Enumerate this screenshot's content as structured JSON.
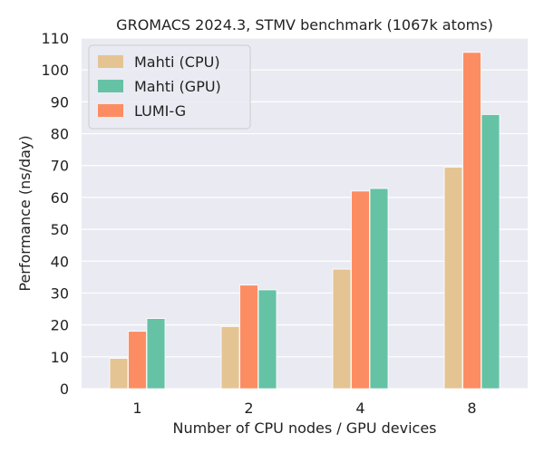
{
  "chart_data": {
    "type": "bar",
    "title": "GROMACS 2024.3, STMV benchmark (1067k atoms)",
    "xlabel": "Number of CPU nodes / GPU devices",
    "ylabel": "Performance (ns/day)",
    "categories": [
      "1",
      "2",
      "4",
      "8"
    ],
    "ylim": [
      0,
      110
    ],
    "yticks": [
      0,
      10,
      20,
      30,
      40,
      50,
      60,
      70,
      80,
      90,
      100,
      110
    ],
    "grid": true,
    "legend_position": "top-left",
    "series": [
      {
        "name": "Mahti (CPU)",
        "color": "#e5c494",
        "values": [
          9.5,
          19.5,
          37.5,
          69.5
        ]
      },
      {
        "name": "LUMI-G",
        "color": "#fc8d62",
        "values": [
          18,
          32.5,
          62,
          105.5
        ]
      },
      {
        "name": "Mahti (GPU)",
        "color": "#66c2a5",
        "values": [
          22,
          31,
          62.8,
          86
        ]
      }
    ],
    "legend_order": [
      "Mahti (CPU)",
      "Mahti (GPU)",
      "LUMI-G"
    ],
    "background_color": "#eaeaf2"
  }
}
